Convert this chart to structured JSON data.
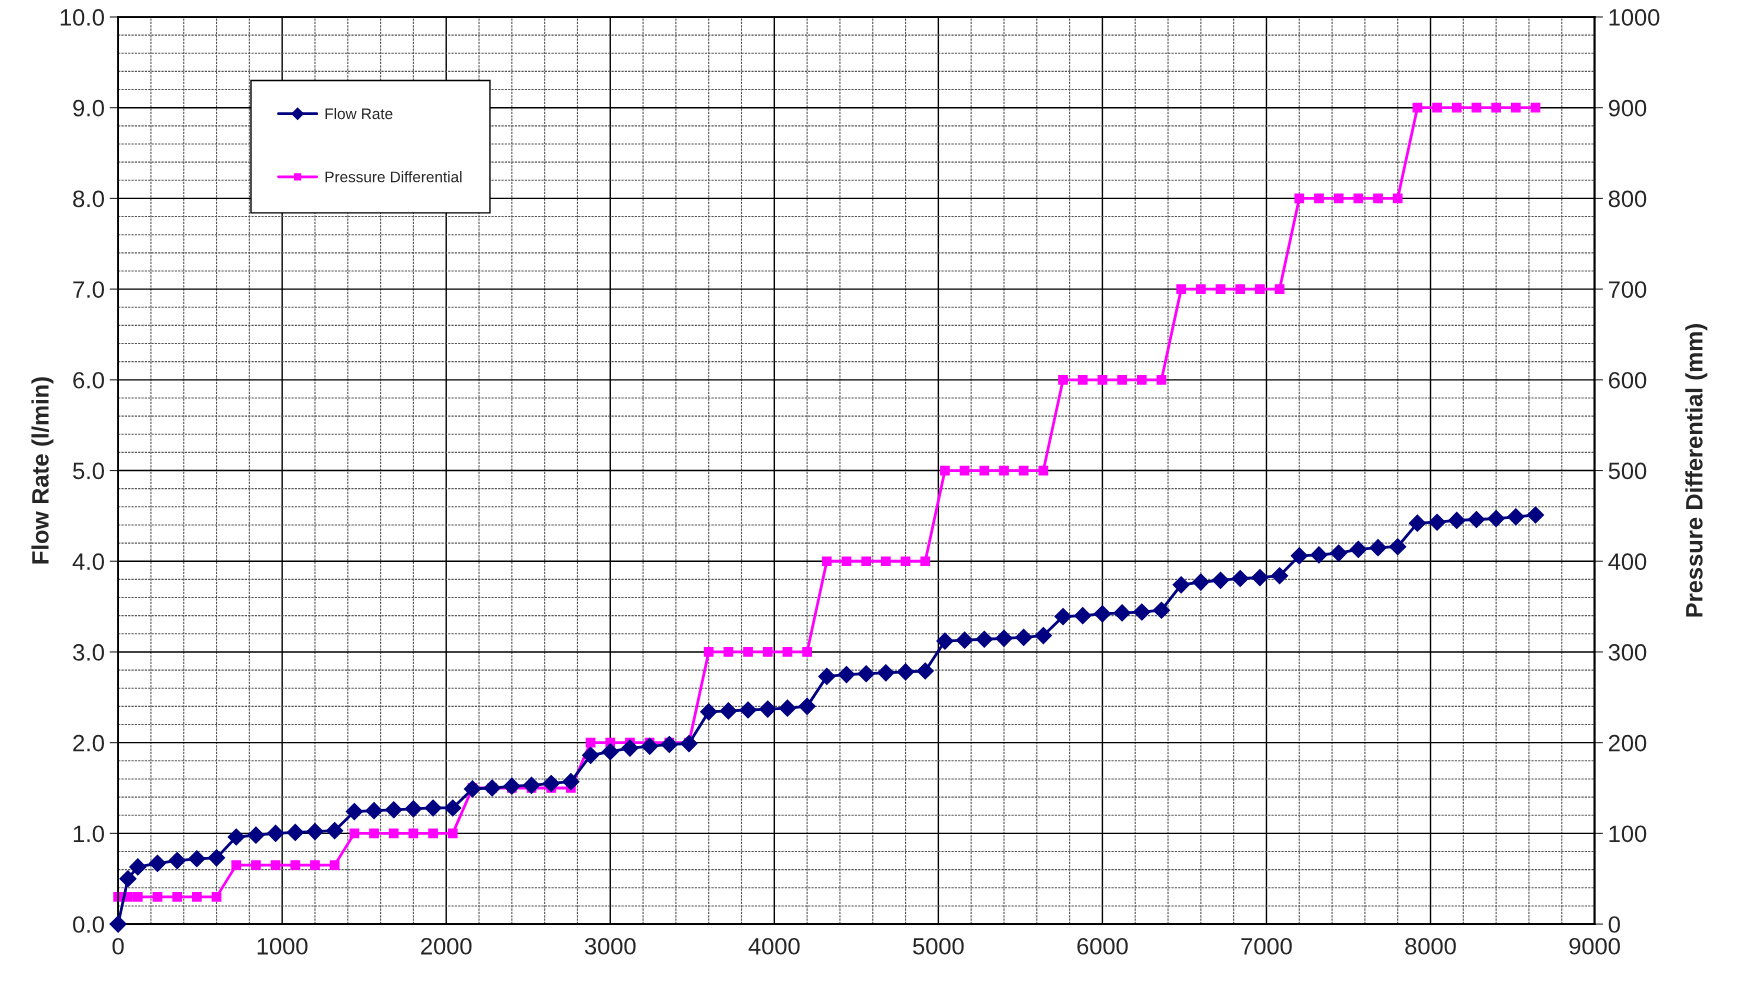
{
  "chart_data": {
    "type": "line",
    "xlabel": null,
    "ylabel": "Flow Rate (l/min)",
    "y2label": "Pressure Differential (mm)",
    "x": [
      0,
      60,
      120,
      240,
      360,
      480,
      600,
      720,
      840,
      960,
      1080,
      1200,
      1320,
      1440,
      1560,
      1680,
      1800,
      1920,
      2040,
      2160,
      2280,
      2400,
      2520,
      2640,
      2760,
      2880,
      3000,
      3120,
      3240,
      3360,
      3480,
      3600,
      3720,
      3840,
      3960,
      4080,
      4200,
      4320,
      4440,
      4560,
      4680,
      4800,
      4920,
      5040,
      5160,
      5280,
      5400,
      5520,
      5640,
      5760,
      5880,
      6000,
      6120,
      6240,
      6360,
      6480,
      6600,
      6720,
      6840,
      6960,
      7080,
      7200,
      7320,
      7440,
      7560,
      7680,
      7800,
      7920,
      8040,
      8160,
      8280,
      8400,
      8520,
      8640
    ],
    "series": [
      {
        "name": "Flow Rate",
        "color": "#000080",
        "marker": "diamond",
        "values": [
          0,
          0.5,
          0.63,
          0.67,
          0.7,
          0.72,
          0.73,
          0.96,
          0.98,
          1.0,
          1.01,
          1.02,
          1.03,
          1.24,
          1.25,
          1.26,
          1.27,
          1.28,
          1.28,
          1.49,
          1.5,
          1.52,
          1.53,
          1.55,
          1.57,
          1.86,
          1.9,
          1.94,
          1.96,
          1.98,
          1.99,
          2.34,
          2.35,
          2.36,
          2.37,
          2.38,
          2.4,
          2.73,
          2.75,
          2.76,
          2.77,
          2.78,
          2.79,
          3.12,
          3.13,
          3.14,
          3.15,
          3.16,
          3.18,
          3.39,
          3.4,
          3.42,
          3.43,
          3.44,
          3.46,
          3.74,
          3.77,
          3.79,
          3.81,
          3.82,
          3.84,
          4.06,
          4.07,
          4.09,
          4.13,
          4.15,
          4.16,
          4.42,
          4.43,
          4.45,
          4.46,
          4.47,
          4.49,
          4.51
        ]
      },
      {
        "name": "Pressure Differential",
        "color": "#ff00ff",
        "marker": "square",
        "axis": "y2",
        "values": [
          30,
          30,
          30,
          30,
          30,
          30,
          30,
          65,
          65,
          65,
          65,
          65,
          65,
          100,
          100,
          100,
          100,
          100,
          100,
          150,
          150,
          150,
          150,
          150,
          150,
          200,
          200,
          200,
          200,
          200,
          200,
          300,
          300,
          300,
          300,
          300,
          300,
          400,
          400,
          400,
          400,
          400,
          400,
          500,
          500,
          500,
          500,
          500,
          500,
          600,
          600,
          600,
          600,
          600,
          600,
          700,
          700,
          700,
          700,
          700,
          700,
          800,
          800,
          800,
          800,
          800,
          800,
          900,
          900,
          900,
          900,
          900,
          900,
          900
        ]
      }
    ],
    "xlim": [
      0,
      9000
    ],
    "xticks": [
      0,
      1000,
      2000,
      3000,
      4000,
      5000,
      6000,
      7000,
      8000,
      9000
    ],
    "ylim": [
      0,
      10
    ],
    "yticks": [
      {
        "value": 0,
        "label": "0.0"
      },
      {
        "value": 1,
        "label": "1.0"
      },
      {
        "value": 2,
        "label": "2.0"
      },
      {
        "value": 3,
        "label": "3.0"
      },
      {
        "value": 4,
        "label": "4.0"
      },
      {
        "value": 5,
        "label": "5.0"
      },
      {
        "value": 6,
        "label": "6.0"
      },
      {
        "value": 7,
        "label": "7.0"
      },
      {
        "value": 8,
        "label": "8.0"
      },
      {
        "value": 9,
        "label": "9.0"
      },
      {
        "value": 10,
        "label": "10.0"
      }
    ],
    "y2lim": [
      0,
      1000
    ],
    "y2ticks": [
      0,
      100,
      200,
      300,
      400,
      500,
      600,
      700,
      800,
      900,
      1000
    ],
    "grid": true,
    "legend": "top left",
    "line_style": "solid"
  }
}
